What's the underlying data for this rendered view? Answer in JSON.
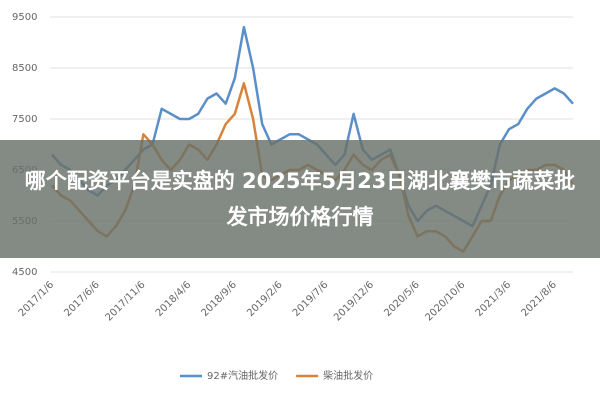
{
  "chart_data": {
    "type": "line",
    "categories": [
      "2017/1/6",
      null,
      null,
      null,
      null,
      "2017/6/6",
      null,
      null,
      null,
      null,
      "2017/11/6",
      null,
      null,
      null,
      null,
      "2018/4/6",
      null,
      null,
      null,
      null,
      "2018/9/6",
      null,
      null,
      null,
      null,
      "2019/2/6",
      null,
      null,
      null,
      null,
      "2019/7/6",
      null,
      null,
      null,
      null,
      "2019/12/6",
      null,
      null,
      null,
      null,
      "2020/5/6",
      null,
      null,
      null,
      null,
      "2020/10/6",
      null,
      null,
      null,
      null,
      "2021/3/6",
      null,
      null,
      null,
      null,
      "2021/8/6",
      null,
      null
    ],
    "series": [
      {
        "name": "92#汽油批发价",
        "color": "#5b8fc9",
        "values": [
          6800,
          6600,
          6500,
          6300,
          6100,
          6000,
          6200,
          6300,
          6500,
          6700,
          6900,
          7000,
          7700,
          7600,
          7500,
          7500,
          7600,
          7900,
          8000,
          7800,
          8300,
          9300,
          8500,
          7400,
          7000,
          7100,
          7200,
          7200,
          7100,
          7000,
          6800,
          6600,
          6800,
          7600,
          6900,
          6700,
          6800,
          6900,
          6400,
          5800,
          5500,
          5700,
          5800,
          5700,
          5600,
          5500,
          5400,
          5800,
          6200,
          7000,
          7300,
          7400,
          7700,
          7900,
          8000,
          8100,
          8000,
          7800
        ]
      },
      {
        "name": "柴油批发价",
        "color": "#d9833a",
        "values": [
          6200,
          6000,
          5900,
          5700,
          5500,
          5300,
          5200,
          5400,
          5700,
          6200,
          7200,
          7000,
          6700,
          6500,
          6700,
          7000,
          6900,
          6700,
          7000,
          7400,
          7600,
          8200,
          7500,
          6400,
          6300,
          6400,
          6500,
          6500,
          6600,
          6500,
          6400,
          6300,
          6500,
          6800,
          6600,
          6500,
          6700,
          6800,
          6400,
          5600,
          5200,
          5300,
          5300,
          5200,
          5000,
          4900,
          5200,
          5500,
          5500,
          6000,
          6300,
          6400,
          6500,
          6500,
          6600,
          6600,
          6500,
          6200
        ]
      }
    ],
    "ylim": [
      4500,
      9500
    ],
    "yticks": [
      4500,
      5500,
      6500,
      7500,
      8500,
      9500
    ],
    "grid": true,
    "legend": "bottom"
  },
  "banner": {
    "text": "哪个配资平台是实盘的 2025年5月23日湖北襄樊市蔬菜批发市场价格行情"
  }
}
